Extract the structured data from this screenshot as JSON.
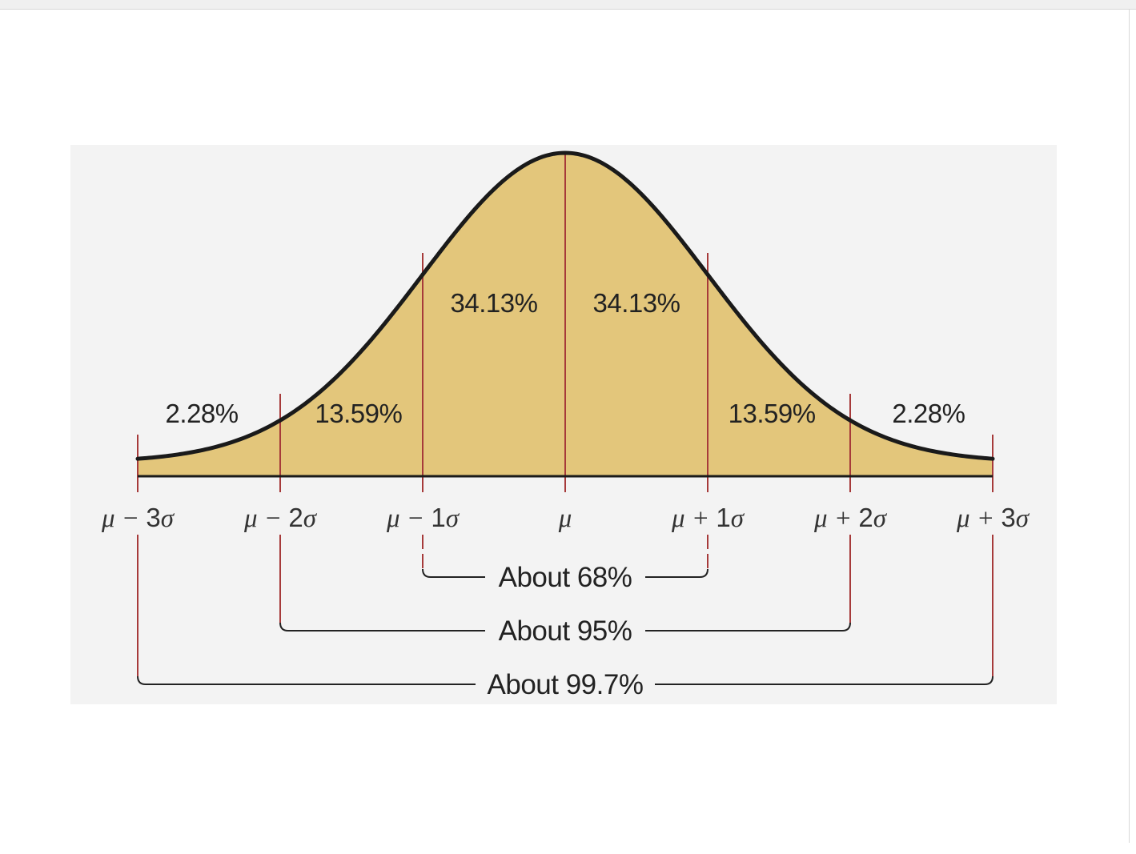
{
  "colors": {
    "curve_fill": "#e3c67b",
    "curve_stroke": "#1a1a1a",
    "sigma_lines": "#a63a3a",
    "bracket_lines": "#222222",
    "panel_background": "#f3f3f3"
  },
  "chart_data": {
    "type": "area",
    "distribution": "normal",
    "x_ticks": [
      {
        "sigma": -3,
        "prefix": "μ − ",
        "num": "3",
        "suffix": "σ"
      },
      {
        "sigma": -2,
        "prefix": "μ − ",
        "num": "2",
        "suffix": "σ"
      },
      {
        "sigma": -1,
        "prefix": "μ − ",
        "num": "1",
        "suffix": "σ"
      },
      {
        "sigma": 0,
        "prefix": "μ",
        "num": "",
        "suffix": ""
      },
      {
        "sigma": 1,
        "prefix": "μ + ",
        "num": "1",
        "suffix": "σ"
      },
      {
        "sigma": 2,
        "prefix": "μ + ",
        "num": "2",
        "suffix": "σ"
      },
      {
        "sigma": 3,
        "prefix": "μ + ",
        "num": "3",
        "suffix": "σ"
      }
    ],
    "region_labels": [
      {
        "from": -4,
        "to": -2,
        "label": "2.28%"
      },
      {
        "from": -2,
        "to": -1,
        "label": "13.59%"
      },
      {
        "from": -1,
        "to": 0,
        "label": "34.13%"
      },
      {
        "from": 0,
        "to": 1,
        "label": "34.13%"
      },
      {
        "from": 1,
        "to": 2,
        "label": "13.59%"
      },
      {
        "from": 2,
        "to": 4,
        "label": "2.28%"
      }
    ],
    "brackets": [
      {
        "from": -1,
        "to": 1,
        "label": "About 68%"
      },
      {
        "from": -2,
        "to": 2,
        "label": "About 95%"
      },
      {
        "from": -3,
        "to": 3,
        "label": "About 99.7%"
      }
    ],
    "x_range": [
      -3,
      3
    ]
  }
}
